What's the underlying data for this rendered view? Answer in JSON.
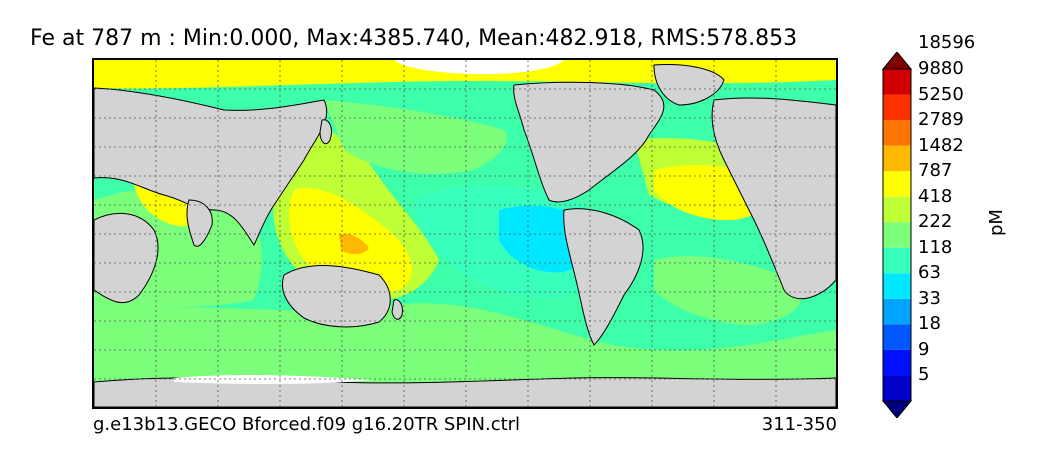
{
  "title": "Fe at 787 m : Min:0.000, Max:4385.740, Mean:482.918, RMS:578.853",
  "footer": {
    "case_name": "g.e13b13.GECO Bforced.f09 g16.20TR SPIN.ctrl",
    "years": "311-350"
  },
  "colorbar": {
    "unit": "pM",
    "levels": [
      "5",
      "9",
      "18",
      "33",
      "63",
      "118",
      "222",
      "418",
      "787",
      "1482",
      "2789",
      "5250",
      "9880",
      "18596"
    ],
    "colors": [
      "#00007f",
      "#0000c8",
      "#0010ff",
      "#0058ff",
      "#00a4ff",
      "#00e8ff",
      "#39ffbd",
      "#7cff7a",
      "#bfff36",
      "#ffff00",
      "#ffb900",
      "#ff7300",
      "#ff3000",
      "#d00000",
      "#7f0000"
    ]
  },
  "map": {
    "land_color": "#d3d3d3",
    "ice_color": "#ffffff",
    "grid": "dotted"
  }
}
